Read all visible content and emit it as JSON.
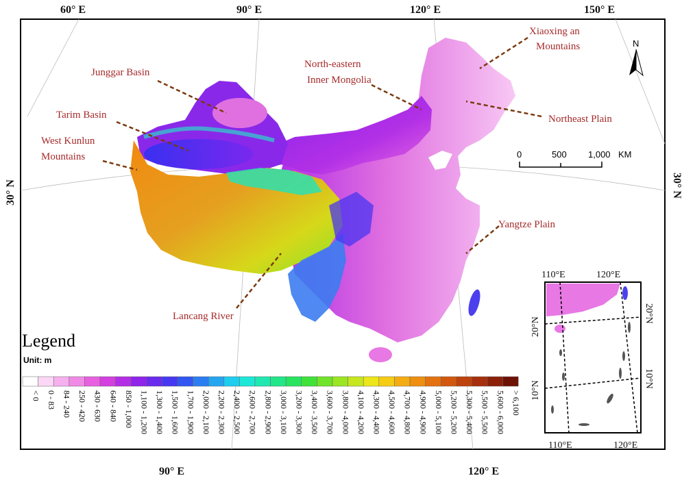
{
  "graticule": {
    "top": [
      "60° E",
      "90° E",
      "120° E",
      "150° E"
    ],
    "bottom": [
      "90° E",
      "120° E"
    ],
    "left": "30° N",
    "right": "30° N"
  },
  "regions": [
    "Xiaoxing an",
    "Mountains",
    "North-eastern",
    "Inner Mongolia",
    "Junggar Basin",
    "Northeast Plain",
    "Tarim Basin",
    "West Kunlun",
    "Mountains",
    "Yangtze Plain",
    "Lancang River"
  ],
  "north_arrow": "N",
  "scale_bar": {
    "labels": [
      "0",
      "500",
      "1,000"
    ],
    "unit": "KM"
  },
  "inset": {
    "top": [
      "110°E",
      "120°E"
    ],
    "bottom": [
      "110°E",
      "120°E"
    ],
    "left": [
      "20°N",
      "10°N"
    ],
    "right": [
      "20°N",
      "10°N"
    ]
  },
  "legend": {
    "title": "Legend",
    "unit": "Unit: m",
    "classes": [
      {
        "label": "< 0",
        "color": "#ffffff"
      },
      {
        "label": "0 - 83",
        "color": "#fbd7f5"
      },
      {
        "label": "84 - 240",
        "color": "#f6b0ee"
      },
      {
        "label": "250 - 420",
        "color": "#f08ae6"
      },
      {
        "label": "430 - 630",
        "color": "#e860df"
      },
      {
        "label": "640 - 840",
        "color": "#d43fe0"
      },
      {
        "label": "850 - 1,000",
        "color": "#b22fe6"
      },
      {
        "label": "1,100 - 1,200",
        "color": "#8f24ea"
      },
      {
        "label": "1,300 - 1,400",
        "color": "#6a2bee"
      },
      {
        "label": "1,500 - 1,600",
        "color": "#4638f2"
      },
      {
        "label": "1,700 - 1,900",
        "color": "#3157f0"
      },
      {
        "label": "2,000 - 2,100",
        "color": "#2c7df0"
      },
      {
        "label": "2,200 - 2,300",
        "color": "#25a5f0"
      },
      {
        "label": "2,400 - 2,500",
        "color": "#1fcdef"
      },
      {
        "label": "2,600 - 2,700",
        "color": "#1de8d8"
      },
      {
        "label": "2,800 - 2,900",
        "color": "#20e8b0"
      },
      {
        "label": "3,000 - 3,100",
        "color": "#22e688"
      },
      {
        "label": "3,200 - 3,300",
        "color": "#28e460"
      },
      {
        "label": "3,400 - 3,500",
        "color": "#40e23a"
      },
      {
        "label": "3,600 - 3,700",
        "color": "#70e32a"
      },
      {
        "label": "3,800 - 4,000",
        "color": "#9be524"
      },
      {
        "label": "4,100 - 4,200",
        "color": "#c6e61f"
      },
      {
        "label": "4,300 - 4,400",
        "color": "#ece61a"
      },
      {
        "label": "4,500 - 4,600",
        "color": "#f6cc14"
      },
      {
        "label": "4,700 - 4,800",
        "color": "#f3ad12"
      },
      {
        "label": "4,900 - 4,900",
        "color": "#ee8f10"
      },
      {
        "label": "5,000 - 5,100",
        "color": "#e4720f"
      },
      {
        "label": "5,200 - 5,200",
        "color": "#d2580e"
      },
      {
        "label": "5,300 - 5,400",
        "color": "#bd420c"
      },
      {
        "label": "5,500 - 5,500",
        "color": "#a6300b"
      },
      {
        "label": "5,600 - 6,000",
        "color": "#8c2009"
      },
      {
        "label": "> 6,100",
        "color": "#6e1206"
      }
    ]
  }
}
